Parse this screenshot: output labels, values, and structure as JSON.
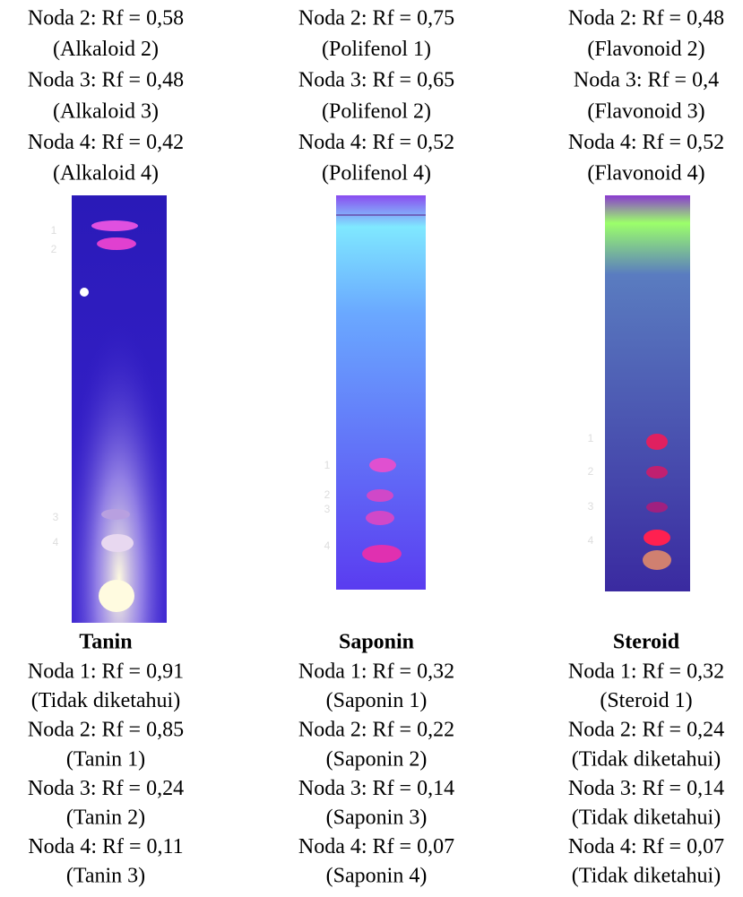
{
  "columns": [
    {
      "top_lines": [
        "Noda 2: Rf = 0,58",
        "(Alkaloid 2)",
        "Noda 3: Rf = 0,48",
        "(Alkaloid 3)",
        "Noda 4: Rf = 0,42",
        "(Alkaloid 4)"
      ],
      "plate_labels": [
        "1",
        "2",
        "3",
        "4"
      ],
      "title": "Tanin",
      "bottom_lines": [
        "Noda 1: Rf = 0,91",
        "(Tidak diketahui)",
        "Noda 2: Rf = 0,85",
        "(Tanin 1)",
        "Noda 3: Rf = 0,24",
        "(Tanin 2)",
        "Noda 4: Rf = 0,11",
        "(Tanin 3)"
      ]
    },
    {
      "top_lines": [
        "Noda 2: Rf = 0,75",
        "(Polifenol 1)",
        "Noda 3: Rf = 0,65",
        "(Polifenol 2)",
        "Noda 4: Rf = 0,52",
        "(Polifenol 4)"
      ],
      "plate_labels": [
        "1",
        "2",
        "3",
        "4"
      ],
      "title": "Saponin",
      "bottom_lines": [
        "Noda 1: Rf = 0,32",
        "(Saponin 1)",
        "Noda 2: Rf = 0,22",
        "(Saponin 2)",
        "Noda 3: Rf = 0,14",
        "(Saponin 3)",
        "Noda 4: Rf = 0,07",
        "(Saponin 4)"
      ]
    },
    {
      "top_lines": [
        "Noda 2: Rf = 0,48",
        "(Flavonoid 2)",
        "Noda 3: Rf = 0,4",
        "(Flavonoid 3)",
        "Noda 4: Rf = 0,52",
        "(Flavonoid 4)"
      ],
      "plate_labels": [
        "1",
        "2",
        "3",
        "4"
      ],
      "title": "Steroid",
      "bottom_lines": [
        "Noda 1: Rf = 0,32",
        "(Steroid 1)",
        "Noda 2: Rf = 0,24",
        "(Tidak diketahui)",
        "Noda 3: Rf = 0,14",
        "(Tidak diketahui)",
        "Noda 4: Rf = 0,07",
        "(Tidak diketahui)"
      ]
    }
  ]
}
